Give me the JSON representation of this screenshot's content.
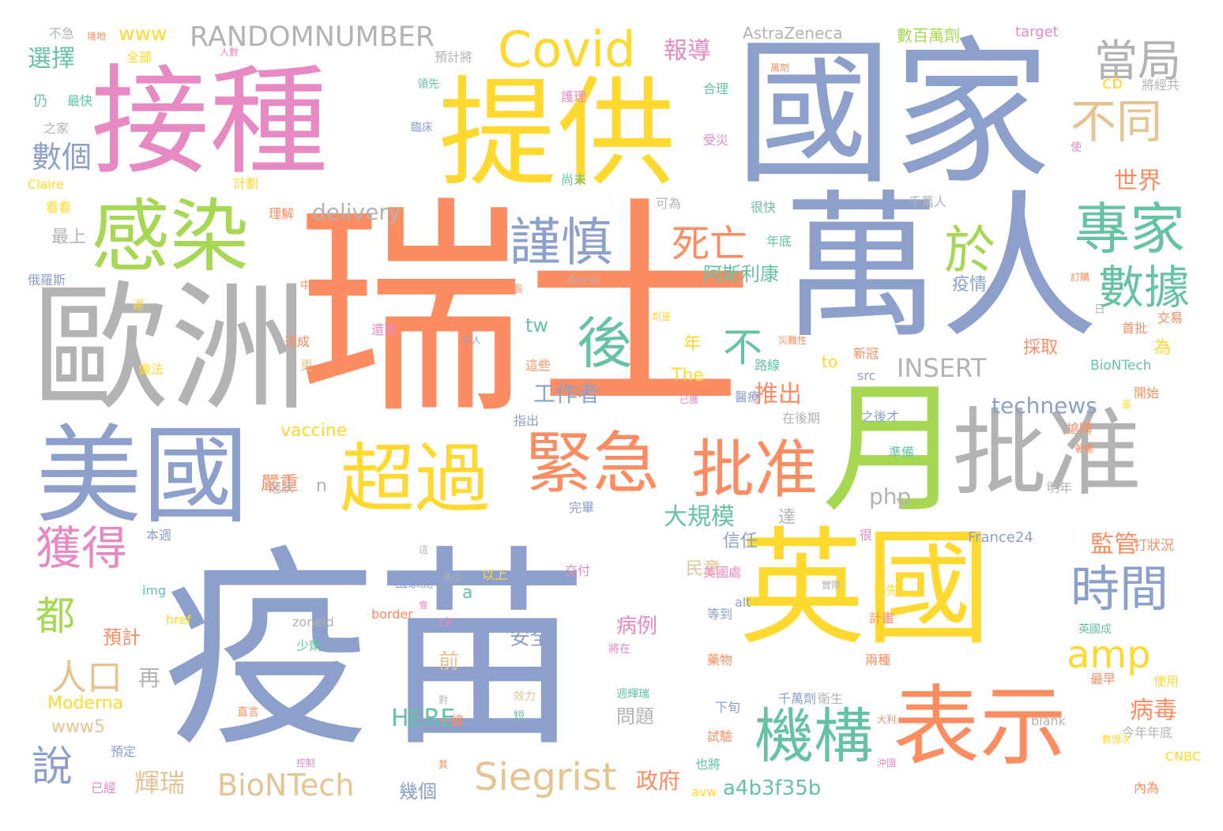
{
  "palette": {
    "blue": "#8da0cb",
    "orange": "#fc8d62",
    "pink": "#e78ac3",
    "green": "#a6d854",
    "yellow": "#ffd92f",
    "teal": "#66c2a5",
    "tan": "#e5c494",
    "gray": "#b3b3b3"
  },
  "words": [
    {
      "text": "疫苗",
      "c": "blue"
    },
    {
      "text": "瑞士",
      "c": "orange"
    },
    {
      "text": "國家",
      "c": "blue"
    },
    {
      "text": "接種",
      "c": "pink"
    },
    {
      "text": "提供",
      "c": "yellow"
    },
    {
      "text": "萬人",
      "c": "blue"
    },
    {
      "text": "歐洲",
      "c": "gray"
    },
    {
      "text": "英國",
      "c": "yellow"
    },
    {
      "text": "月",
      "c": "green"
    },
    {
      "text": "批准",
      "c": "gray"
    },
    {
      "text": "美國",
      "c": "blue"
    },
    {
      "text": "感染",
      "c": "green"
    },
    {
      "text": "表示",
      "c": "orange"
    },
    {
      "text": "超過",
      "c": "yellow"
    },
    {
      "text": "緊急",
      "c": "orange"
    },
    {
      "text": "批准",
      "c": "orange"
    },
    {
      "text": "Covid",
      "c": "yellow"
    },
    {
      "text": "專家",
      "c": "teal"
    },
    {
      "text": "機構",
      "c": "teal"
    },
    {
      "text": "時間",
      "c": "blue"
    },
    {
      "text": "後",
      "c": "teal"
    },
    {
      "text": "謹慎",
      "c": "blue"
    },
    {
      "text": "於",
      "c": "green"
    },
    {
      "text": "數據",
      "c": "teal"
    },
    {
      "text": "獲得",
      "c": "pink"
    },
    {
      "text": "當局",
      "c": "gray"
    },
    {
      "text": "不同",
      "c": "tan"
    },
    {
      "text": "amp",
      "c": "yellow"
    },
    {
      "text": "Siegrist",
      "c": "tan"
    },
    {
      "text": "人口",
      "c": "tan"
    },
    {
      "text": "都",
      "c": "green"
    },
    {
      "text": "說",
      "c": "blue"
    },
    {
      "text": "不",
      "c": "teal"
    },
    {
      "text": "死亡",
      "c": "orange"
    },
    {
      "text": "BioNTech",
      "c": "tan"
    },
    {
      "text": "RANDOMNUMBER",
      "c": "gray"
    },
    {
      "text": "數個",
      "c": "blue"
    },
    {
      "text": "選擇",
      "c": "teal"
    },
    {
      "text": "INSERT",
      "c": "gray"
    },
    {
      "text": "technews",
      "c": "blue"
    },
    {
      "text": "delivery",
      "c": "gray"
    },
    {
      "text": "a4b3f35b",
      "c": "teal"
    },
    {
      "text": "輝瑞",
      "c": "tan"
    },
    {
      "text": "推出",
      "c": "orange"
    },
    {
      "text": "大規模",
      "c": "teal"
    },
    {
      "text": "工作者",
      "c": "blue"
    },
    {
      "text": "世界",
      "c": "orange"
    },
    {
      "text": "報導",
      "c": "pink"
    },
    {
      "text": "監管",
      "c": "orange"
    },
    {
      "text": "病毒",
      "c": "orange"
    },
    {
      "text": "HERE",
      "c": "teal"
    },
    {
      "text": "php",
      "c": "gray"
    },
    {
      "text": "vaccine",
      "c": "yellow"
    },
    {
      "text": "Moderna",
      "c": "yellow"
    },
    {
      "text": "www5",
      "c": "tan"
    },
    {
      "text": "政府",
      "c": "orange"
    },
    {
      "text": "幾個",
      "c": "blue"
    },
    {
      "text": "安全",
      "c": "blue"
    },
    {
      "text": "病例",
      "c": "pink"
    },
    {
      "text": "問題",
      "c": "gray"
    },
    {
      "text": "www",
      "c": "yellow"
    },
    {
      "text": "AstraZeneca",
      "c": "gray"
    },
    {
      "text": "阿斯利康",
      "c": "teal"
    },
    {
      "text": "疫情",
      "c": "blue"
    },
    {
      "text": "嚴重",
      "c": "orange"
    },
    {
      "text": "預計",
      "c": "orange"
    },
    {
      "text": "再",
      "c": "gray"
    },
    {
      "text": "前",
      "c": "tan"
    },
    {
      "text": "a",
      "c": "teal"
    },
    {
      "text": "n",
      "c": "gray"
    },
    {
      "text": "tw",
      "c": "teal"
    },
    {
      "text": "年",
      "c": "yellow"
    },
    {
      "text": "The",
      "c": "yellow"
    },
    {
      "text": "為",
      "c": "yellow"
    },
    {
      "text": "採取",
      "c": "orange"
    },
    {
      "text": "信任",
      "c": "blue"
    },
    {
      "text": "民意",
      "c": "tan"
    },
    {
      "text": "達",
      "c": "gray"
    },
    {
      "text": "數百萬劑",
      "c": "green"
    },
    {
      "text": "target",
      "c": "pink"
    },
    {
      "text": "cb",
      "c": "yellow"
    },
    {
      "text": "BioNTech",
      "c": "teal"
    },
    {
      "text": "France24",
      "c": "blue"
    },
    {
      "text": "打狀況",
      "c": "orange"
    },
    {
      "text": "to",
      "c": "yellow"
    },
    {
      "text": "src",
      "c": "blue"
    },
    {
      "text": "新冠",
      "c": "orange"
    },
    {
      "text": "Anne",
      "c": "gray"
    },
    {
      "text": "Claire",
      "c": "yellow"
    },
    {
      "text": "俄羅斯",
      "c": "blue"
    },
    {
      "text": "最上",
      "c": "gray"
    },
    {
      "text": "仍",
      "c": "teal"
    },
    {
      "text": "最快",
      "c": "teal"
    },
    {
      "text": "之家",
      "c": "gray"
    },
    {
      "text": "不急",
      "c": "gray"
    },
    {
      "text": "全部",
      "c": "yellow"
    },
    {
      "text": "預計將",
      "c": "gray"
    },
    {
      "text": "護理",
      "c": "pink"
    },
    {
      "text": "合理",
      "c": "teal"
    },
    {
      "text": "受災",
      "c": "pink"
    },
    {
      "text": "尚未",
      "c": "teal"
    },
    {
      "text": "可為",
      "c": "gray"
    },
    {
      "text": "很快",
      "c": "teal"
    },
    {
      "text": "千萬人",
      "c": "gray"
    },
    {
      "text": "年底",
      "c": "teal"
    },
    {
      "text": "計劃",
      "c": "yellow"
    },
    {
      "text": "看看",
      "c": "yellow"
    },
    {
      "text": "理解",
      "c": "orange"
    },
    {
      "text": "將經共",
      "c": "gray"
    },
    {
      "text": "首批",
      "c": "orange"
    },
    {
      "text": "交易",
      "c": "orange"
    },
    {
      "text": "開始",
      "c": "orange"
    },
    {
      "text": "搶購",
      "c": "orange"
    },
    {
      "text": "明年",
      "c": "gray"
    },
    {
      "text": "在後期",
      "c": "gray"
    },
    {
      "text": "之後才",
      "c": "blue"
    },
    {
      "text": "準備",
      "c": "teal"
    },
    {
      "text": "路線",
      "c": "teal"
    },
    {
      "text": "更",
      "c": "tan"
    },
    {
      "text": "達成",
      "c": "orange"
    },
    {
      "text": "還要",
      "c": "pink"
    },
    {
      "text": "做法",
      "c": "yellow"
    },
    {
      "text": "本週",
      "c": "blue"
    },
    {
      "text": "冠狀",
      "c": "gray"
    },
    {
      "text": "完畢",
      "c": "blue"
    },
    {
      "text": "以上",
      "c": "yellow"
    },
    {
      "text": "交付",
      "c": "pink"
    },
    {
      "text": "指出",
      "c": "blue"
    },
    {
      "text": "這些",
      "c": "orange"
    },
    {
      "text": "醫療",
      "c": "blue"
    },
    {
      "text": "美國處",
      "c": "pink"
    },
    {
      "text": "alt",
      "c": "blue"
    },
    {
      "text": "等到",
      "c": "blue"
    },
    {
      "text": "藥物",
      "c": "orange"
    },
    {
      "text": "千萬劑",
      "c": "blue"
    },
    {
      "text": "衛生",
      "c": "gray"
    },
    {
      "text": "下旬",
      "c": "blue"
    },
    {
      "text": "試驗",
      "c": "orange"
    },
    {
      "text": "也將",
      "c": "teal"
    },
    {
      "text": "avw",
      "c": "yellow"
    },
    {
      "text": "很",
      "c": "pink"
    },
    {
      "text": "預先",
      "c": "yellow"
    },
    {
      "text": "計畫",
      "c": "orange"
    },
    {
      "text": "兩種",
      "c": "orange"
    },
    {
      "text": "使用",
      "c": "yellow"
    },
    {
      "text": "最早",
      "c": "orange"
    },
    {
      "text": "blank",
      "c": "gray"
    },
    {
      "text": "今年年底",
      "c": "gray"
    },
    {
      "text": "CNBC",
      "c": "yellow"
    },
    {
      "text": "內為",
      "c": "orange"
    },
    {
      "text": "國家施",
      "c": "blue"
    },
    {
      "text": "border",
      "c": "orange"
    },
    {
      "text": "ck",
      "c": "pink"
    },
    {
      "text": "img",
      "c": "teal"
    },
    {
      "text": "href",
      "c": "yellow"
    },
    {
      "text": "zoneid",
      "c": "gray"
    },
    {
      "text": "少劑",
      "c": "teal"
    },
    {
      "text": "一線",
      "c": "orange"
    },
    {
      "text": "預定",
      "c": "blue"
    },
    {
      "text": "已經",
      "c": "pink"
    },
    {
      "text": "直言",
      "c": "orange"
    },
    {
      "text": "效力",
      "c": "tan"
    },
    {
      "text": "短",
      "c": "teal"
    },
    {
      "text": "將在",
      "c": "pink"
    },
    {
      "text": "週輝瑞",
      "c": "teal"
    },
    {
      "text": "英國成",
      "c": "teal"
    },
    {
      "text": "臨床",
      "c": "blue"
    },
    {
      "text": "領先",
      "c": "teal"
    },
    {
      "text": "中",
      "c": "orange"
    },
    {
      "text": "遲",
      "c": "yellow"
    },
    {
      "text": "使",
      "c": "pink"
    },
    {
      "text": "日",
      "c": "gray"
    },
    {
      "text": "長",
      "c": "orange"
    },
    {
      "text": "萬劑",
      "c": "orange"
    },
    {
      "text": "已獲",
      "c": "pink"
    },
    {
      "text": "災難性",
      "c": "orange"
    },
    {
      "text": "千人",
      "c": "blue"
    },
    {
      "text": "對",
      "c": "gray"
    },
    {
      "text": "量",
      "c": "yellow"
    },
    {
      "text": "訂購",
      "c": "orange"
    },
    {
      "text": "著施",
      "c": "orange"
    },
    {
      "text": "境地",
      "c": "orange"
    },
    {
      "text": "會",
      "c": "pink"
    },
    {
      "text": "人數",
      "c": "pink"
    },
    {
      "text": "這",
      "c": "gray"
    },
    {
      "text": "劑量",
      "c": "yellow"
    },
    {
      "text": "高山",
      "c": "gray"
    },
    {
      "text": "實際",
      "c": "gray"
    },
    {
      "text": "大利",
      "c": "orange"
    },
    {
      "text": "數億次",
      "c": "yellow"
    },
    {
      "text": "控制",
      "c": "pink"
    },
    {
      "text": "其",
      "c": "orange"
    },
    {
      "text": "沖國",
      "c": "pink"
    }
  ]
}
